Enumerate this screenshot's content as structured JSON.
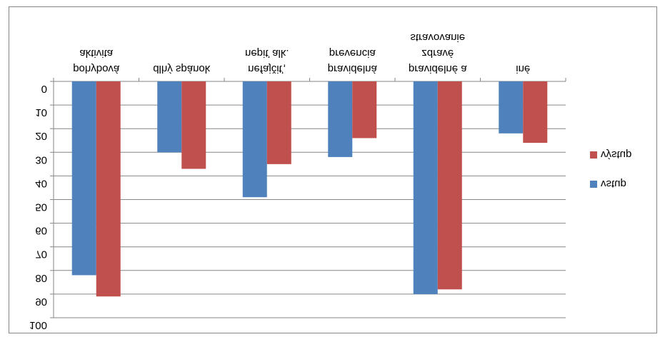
{
  "chart_data": {
    "type": "bar",
    "orientation": "vertical-flipped",
    "categories": [
      [
        "aktivita",
        "pohybová"
      ],
      [
        "dlhý spánok"
      ],
      [
        "nepiť alk.",
        "nefajčiť,"
      ],
      [
        "prevencia",
        "pravidelná"
      ],
      [
        "stravovanie",
        "zdravé",
        "pravidelné a"
      ],
      [
        "iné"
      ]
    ],
    "series": [
      {
        "name": "vstup",
        "color": "#4f81bd",
        "values": [
          82,
          30,
          49,
          32,
          90,
          22
        ]
      },
      {
        "name": "výstup",
        "color": "#c0504d",
        "values": [
          91,
          37,
          35,
          24,
          88,
          26
        ]
      }
    ],
    "yticks": [
      "0",
      "10",
      "20",
      "30",
      "40",
      "50",
      "60",
      "70",
      "80",
      "90",
      "100"
    ],
    "ylim": [
      0,
      100
    ],
    "grid": true,
    "legend_position": "right",
    "legend": [
      {
        "label": "výstup",
        "color": "#c0504d"
      },
      {
        "label": "vstup",
        "color": "#4f81bd"
      }
    ]
  }
}
